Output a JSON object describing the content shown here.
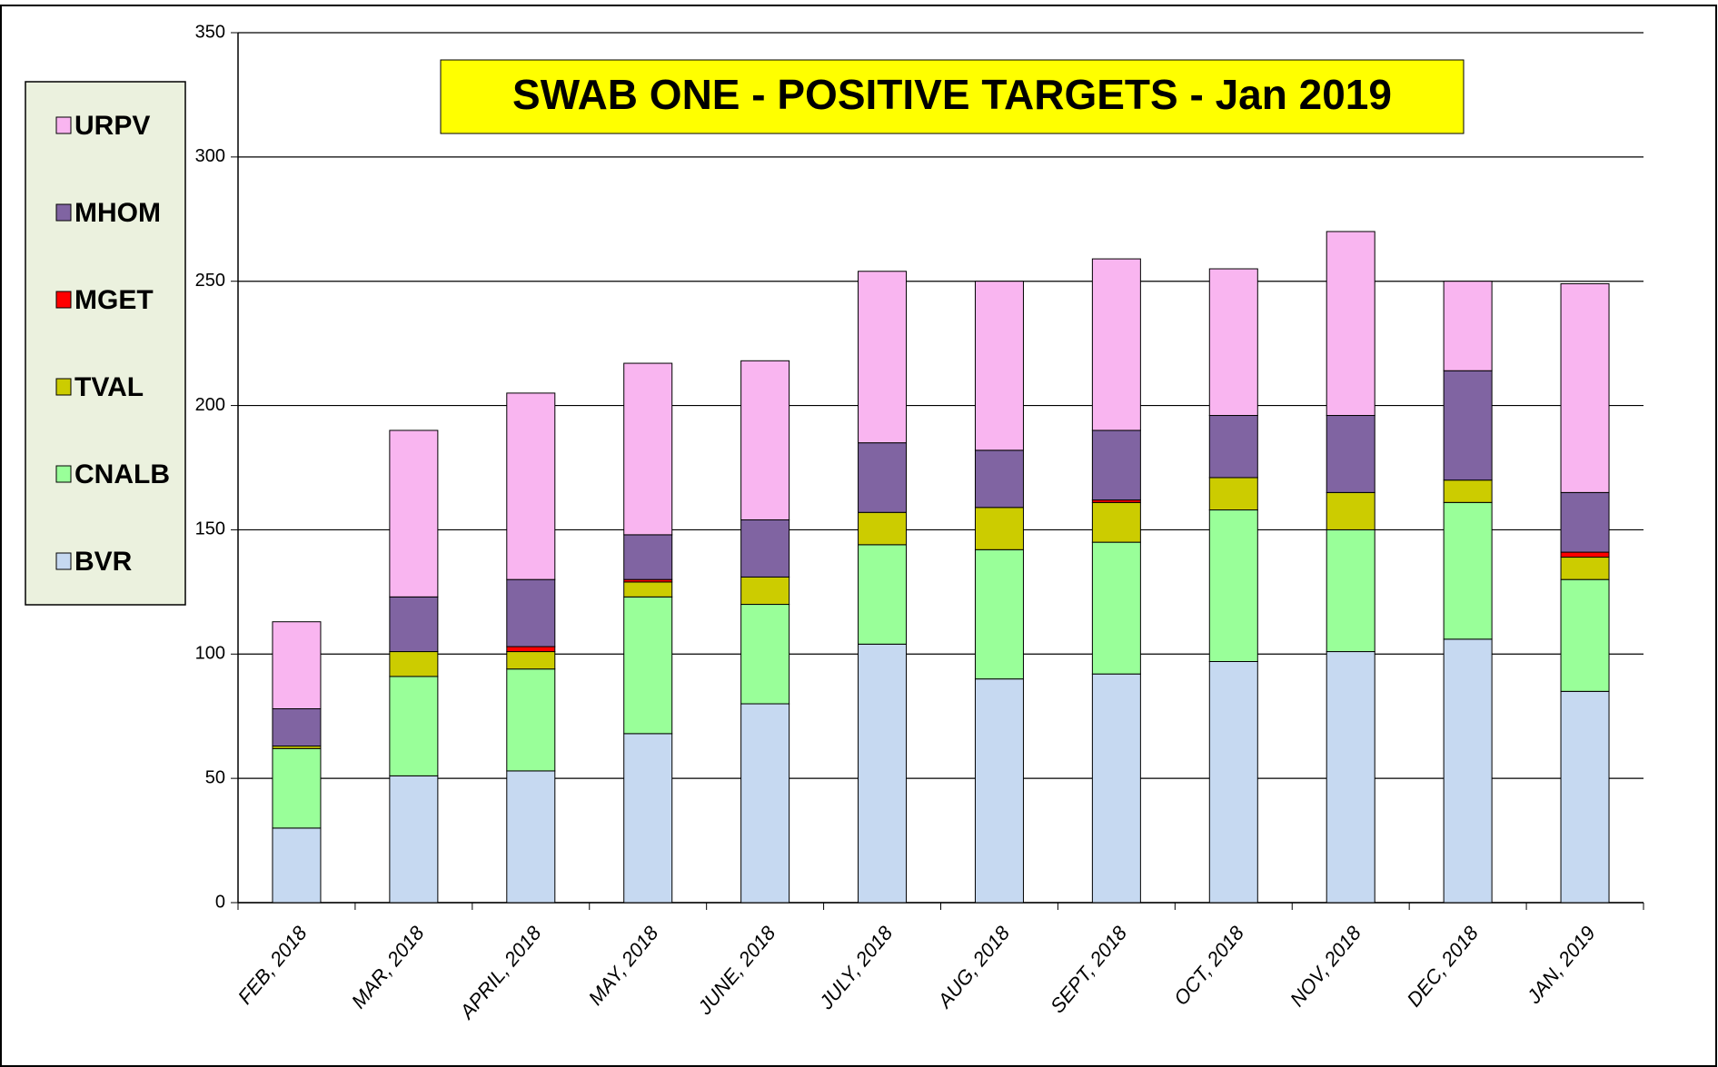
{
  "chart_data": {
    "type": "stacked_bar",
    "title": "SWAB ONE - POSITIVE TARGETS - Jan 2019",
    "categories": [
      "FEB, 2018",
      "MAR, 2018",
      "APRIL, 2018",
      "MAY, 2018",
      "JUNE, 2018",
      "JULY, 2018",
      "AUG, 2018",
      "SEPT, 2018",
      "OCT, 2018",
      "NOV, 2018",
      "DEC, 2018",
      "JAN, 2019"
    ],
    "series": [
      {
        "name": "BVR",
        "color": "#c6d9f1",
        "values": [
          30,
          51,
          53,
          68,
          80,
          104,
          90,
          92,
          97,
          101,
          106,
          85
        ]
      },
      {
        "name": "CNALB",
        "color": "#99ff99",
        "values": [
          32,
          40,
          41,
          55,
          40,
          40,
          52,
          53,
          61,
          49,
          55,
          45
        ]
      },
      {
        "name": "TVAL",
        "color": "#cccc00",
        "values": [
          1,
          10,
          7,
          6,
          11,
          13,
          17,
          16,
          13,
          15,
          9,
          9
        ]
      },
      {
        "name": "MGET",
        "color": "#ff0000",
        "values": [
          0,
          0,
          2,
          1,
          0,
          0,
          0,
          1,
          0,
          0,
          0,
          2
        ]
      },
      {
        "name": "MHOM",
        "color": "#8064a2",
        "values": [
          15,
          22,
          27,
          18,
          23,
          28,
          23,
          28,
          25,
          31,
          44,
          24
        ]
      },
      {
        "name": "URPV",
        "color": "#f9b5f0",
        "values": [
          35,
          67,
          75,
          69,
          64,
          69,
          68,
          69,
          59,
          74,
          36,
          84
        ]
      }
    ],
    "ylim": [
      0,
      350
    ],
    "yticks": [
      0,
      50,
      100,
      150,
      200,
      250,
      300,
      350
    ],
    "grid": true,
    "legend": "left"
  }
}
